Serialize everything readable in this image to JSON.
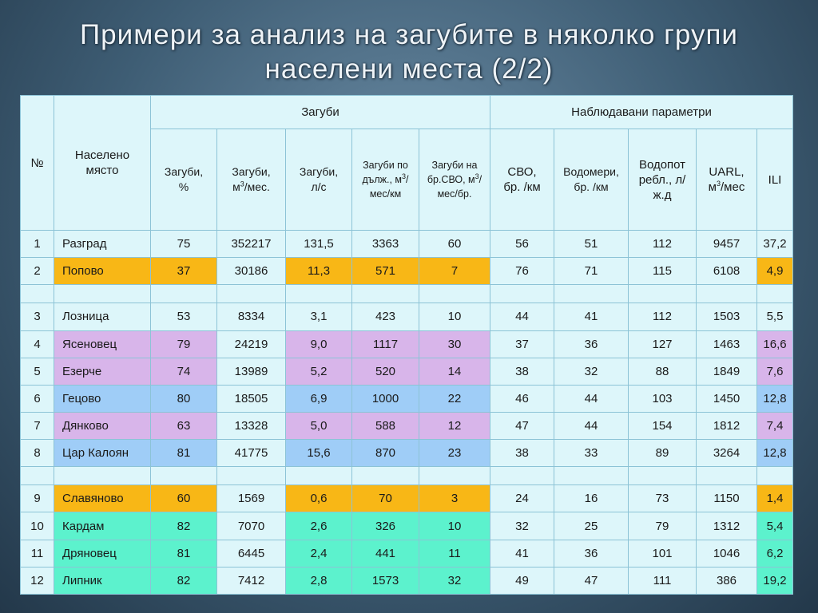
{
  "slide": {
    "title_line1": "Примери за анализ на загубите в няколко групи",
    "title_line2": "населени места (2/2)"
  },
  "table": {
    "header": {
      "num": "№",
      "place": "Населено място",
      "losses_group": "Загуби",
      "params_group": "Наблюдавани параметри",
      "col_pct": "Загуби, %",
      "col_m3_a": "Загуби, м",
      "col_m3_b": "/мес.",
      "col_ls": "Загуби, л/с",
      "col_km_a": "Загуби по дълж., м",
      "col_km_b": "/мес/км",
      "col_svo_a": "Загуби на бр.СВО, м",
      "col_svo_b": "/мес/бр.",
      "col_svo_km": "СВО, бр. /км",
      "col_meters": "Водомери, бр. /км",
      "col_consumption": "Водопот ребл., л/ж.д",
      "col_uarl_a": "UARL, м",
      "col_uarl_b": "/мес",
      "col_ili": "ILI",
      "sup3": "3"
    },
    "rows": [
      {
        "num": "1",
        "name": "Разград",
        "v": [
          "75",
          "352217",
          "131,5",
          "3363",
          "60",
          "56",
          "51",
          "112",
          "9457",
          "37,2"
        ]
      },
      {
        "num": "2",
        "name": "Попово",
        "v": [
          "37",
          "30186",
          "11,3",
          "571",
          "7",
          "76",
          "71",
          "115",
          "6108",
          "4,9"
        ]
      },
      {
        "gap": true
      },
      {
        "num": "3",
        "name": "Лозница",
        "v": [
          "53",
          "8334",
          "3,1",
          "423",
          "10",
          "44",
          "41",
          "112",
          "1503",
          "5,5"
        ]
      },
      {
        "num": "4",
        "name": "Ясеновец",
        "v": [
          "79",
          "24219",
          "9,0",
          "1117",
          "30",
          "37",
          "36",
          "127",
          "1463",
          "16,6"
        ]
      },
      {
        "num": "5",
        "name": "Езерче",
        "v": [
          "74",
          "13989",
          "5,2",
          "520",
          "14",
          "38",
          "32",
          "88",
          "1849",
          "7,6"
        ]
      },
      {
        "num": "6",
        "name": "Гецово",
        "v": [
          "80",
          "18505",
          "6,9",
          "1000",
          "22",
          "46",
          "44",
          "103",
          "1450",
          "12,8"
        ]
      },
      {
        "num": "7",
        "name": "Дянково",
        "v": [
          "63",
          "13328",
          "5,0",
          "588",
          "12",
          "47",
          "44",
          "154",
          "1812",
          "7,4"
        ]
      },
      {
        "num": "8",
        "name": "Цар Калоян",
        "v": [
          "81",
          "41775",
          "15,6",
          "870",
          "23",
          "38",
          "33",
          "89",
          "3264",
          "12,8"
        ]
      },
      {
        "gap": true
      },
      {
        "num": "9",
        "name": "Славяново",
        "v": [
          "60",
          "1569",
          "0,6",
          "70",
          "3",
          "24",
          "16",
          "73",
          "1150",
          "1,4"
        ]
      },
      {
        "num": "10",
        "name": "Кардам",
        "v": [
          "82",
          "7070",
          "2,6",
          "326",
          "10",
          "32",
          "25",
          "79",
          "1312",
          "5,4"
        ]
      },
      {
        "num": "11",
        "name": "Дряновец",
        "v": [
          "81",
          "6445",
          "2,4",
          "441",
          "11",
          "41",
          "36",
          "101",
          "1046",
          "6,2"
        ]
      },
      {
        "num": "12",
        "name": "Липник",
        "v": [
          "82",
          "7412",
          "2,8",
          "1573",
          "32",
          "49",
          "47",
          "111",
          "386",
          "19,2"
        ]
      }
    ],
    "highlight_colors": {
      "orange": "#f8b716",
      "purple": "#d8b5ea",
      "blue": "#9fcdf7",
      "green": "#5cf2cd",
      "base": "#ddf6fa"
    },
    "row_highlights": {
      "Попово": "orange",
      "Ясеновец": "purple",
      "Езерче": "purple",
      "Гецово": "blue",
      "Дянково": "purple",
      "Цар Калоян": "blue",
      "Славяново": "orange",
      "Кардам": "green",
      "Дряновец": "green",
      "Липник": "green"
    }
  }
}
